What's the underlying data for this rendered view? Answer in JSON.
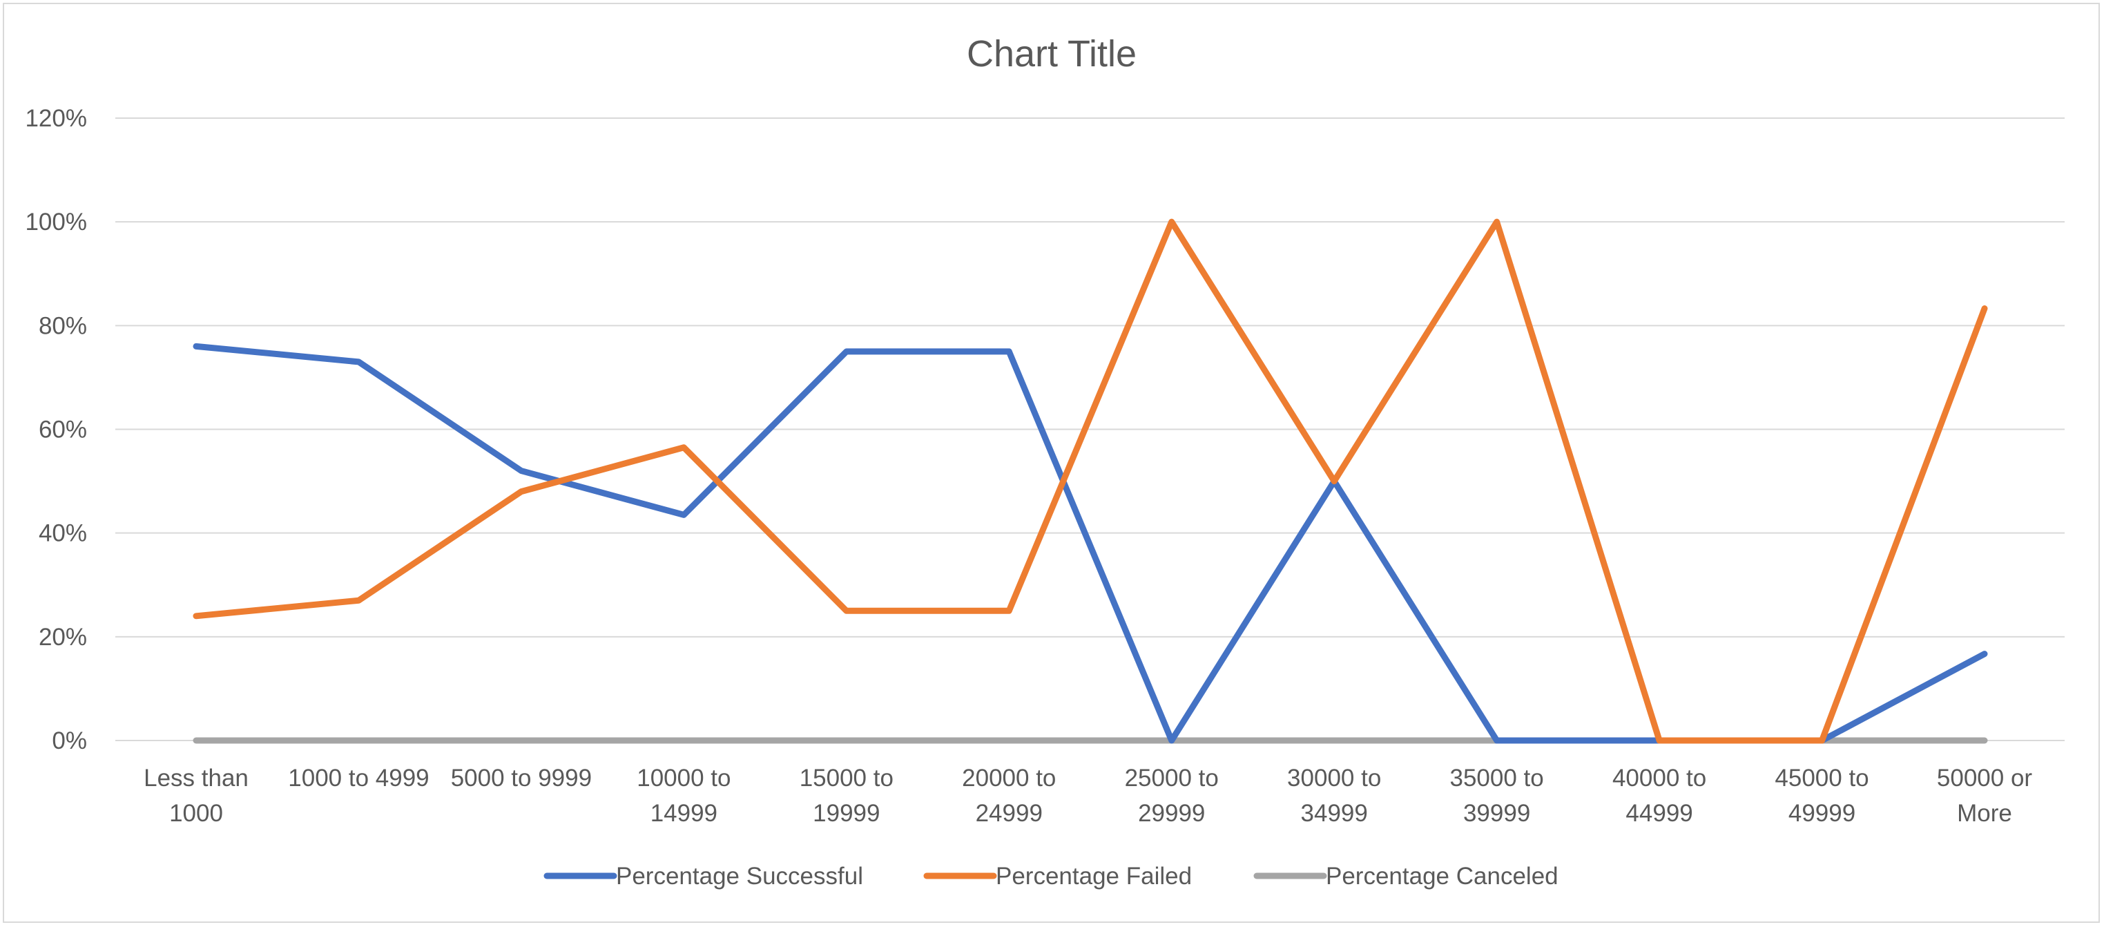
{
  "chart_data": {
    "type": "line",
    "title": "Chart Title",
    "xlabel": "",
    "ylabel": "",
    "categories": [
      [
        "Less than",
        "1000"
      ],
      [
        "1000 to 4999"
      ],
      [
        "5000 to 9999"
      ],
      [
        "10000 to",
        "14999"
      ],
      [
        "15000 to",
        "19999"
      ],
      [
        "20000 to",
        "24999"
      ],
      [
        "25000 to",
        "29999"
      ],
      [
        "30000 to",
        "34999"
      ],
      [
        "35000 to",
        "39999"
      ],
      [
        "40000 to",
        "44999"
      ],
      [
        "45000 to",
        "49999"
      ],
      [
        "50000 or",
        "More"
      ]
    ],
    "ylim": [
      0,
      1.2
    ],
    "yticks": [
      "0%",
      "20%",
      "40%",
      "60%",
      "80%",
      "100%",
      "120%"
    ],
    "grid": true,
    "legend": "bottom",
    "series": [
      {
        "name": "Percentage Successful",
        "color": "#4472c4",
        "values": [
          0.76,
          0.73,
          0.52,
          0.435,
          0.75,
          0.75,
          0.0,
          0.5,
          0.0,
          0.0,
          0.0,
          0.167
        ]
      },
      {
        "name": "Percentage Failed",
        "color": "#ed7d31",
        "values": [
          0.24,
          0.27,
          0.48,
          0.565,
          0.25,
          0.25,
          1.0,
          0.5,
          1.0,
          0.0,
          0.0,
          0.833
        ]
      },
      {
        "name": "Percentage Canceled",
        "color": "#a5a5a5",
        "values": [
          0,
          0,
          0,
          0,
          0,
          0,
          0,
          0,
          0,
          0,
          0,
          0
        ]
      }
    ]
  }
}
